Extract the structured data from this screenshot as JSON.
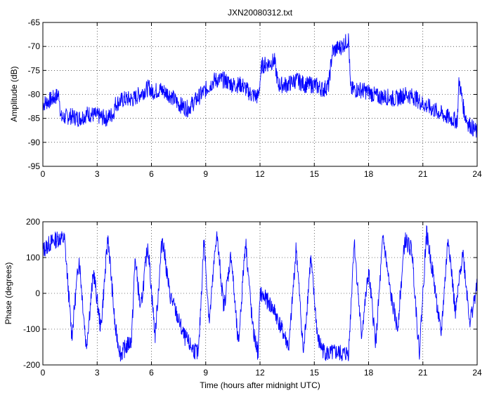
{
  "chart_data": [
    {
      "type": "line",
      "title": "JXN20080312.txt",
      "xlabel": "",
      "ylabel": "Amplitude (dB)",
      "xlim": [
        0,
        24
      ],
      "ylim": [
        -95,
        -65
      ],
      "xticks": [
        "0",
        "3",
        "6",
        "9",
        "12",
        "15",
        "18",
        "21",
        "24"
      ],
      "yticks": [
        "-95",
        "-90",
        "-85",
        "-80",
        "-75",
        "-70",
        "-65"
      ],
      "grid": true,
      "color": "#0000ff",
      "series": [
        {
          "x": [
            0,
            0.5,
            0.9,
            1.0,
            1.5,
            2.0,
            2.5,
            3.0,
            3.5,
            3.9,
            4.0,
            4.5,
            5.0,
            5.5,
            5.9,
            6.0,
            6.5,
            7.0,
            7.5,
            8.0,
            8.5,
            9.0,
            9.5,
            10.0,
            10.5,
            11.0,
            11.5,
            11.9,
            12.1,
            12.5,
            12.8,
            13.0,
            13.5,
            14.0,
            14.5,
            15.0,
            15.5,
            15.8,
            16.0,
            16.5,
            16.9,
            17.0,
            17.5,
            18.0,
            18.5,
            19.0,
            19.5,
            20.0,
            20.5,
            21.0,
            21.5,
            22.0,
            22.5,
            22.9,
            23.0,
            23.3,
            23.5,
            24.0
          ],
          "values": [
            -82,
            -81,
            -80,
            -85,
            -84.5,
            -85,
            -84,
            -84.5,
            -85,
            -84,
            -82,
            -81,
            -81,
            -79.5,
            -78.5,
            -79.5,
            -79,
            -80,
            -82,
            -83,
            -81,
            -79,
            -77,
            -77,
            -78,
            -78,
            -80,
            -80.5,
            -74,
            -73.5,
            -73,
            -78,
            -78,
            -77,
            -78,
            -78,
            -79,
            -78,
            -71,
            -70,
            -68.5,
            -79,
            -79,
            -79.5,
            -80.5,
            -80.5,
            -81,
            -80,
            -80.5,
            -82,
            -83,
            -84,
            -85,
            -85.5,
            -77,
            -84,
            -86,
            -88
          ]
        }
      ]
    },
    {
      "type": "line",
      "title": "",
      "xlabel": "Time (hours after midnight UTC)",
      "ylabel": "Phase (degrees)",
      "xlim": [
        0,
        24
      ],
      "ylim": [
        -200,
        200
      ],
      "xticks": [
        "0",
        "3",
        "6",
        "9",
        "12",
        "15",
        "18",
        "21",
        "24"
      ],
      "yticks": [
        "-200",
        "-100",
        "0",
        "100",
        "200"
      ],
      "grid": true,
      "color": "#0000ff",
      "series": [
        {
          "x": [
            0,
            0.4,
            0.9,
            1.2,
            1.6,
            2.0,
            2.4,
            2.8,
            3.2,
            3.6,
            4.0,
            4.3,
            4.6,
            4.9,
            5.1,
            5.4,
            5.8,
            6.2,
            6.6,
            7.0,
            7.4,
            7.8,
            8.2,
            8.6,
            8.9,
            9.2,
            9.6,
            10.0,
            10.4,
            10.8,
            11.2,
            11.6,
            11.9,
            12.0,
            12.4,
            12.8,
            13.2,
            13.6,
            14.0,
            14.4,
            14.8,
            15.2,
            15.5,
            15.8,
            16.2,
            16.6,
            16.9,
            17.2,
            17.6,
            18.0,
            18.4,
            18.8,
            19.2,
            19.6,
            20.0,
            20.4,
            20.8,
            21.2,
            21.6,
            22.0,
            22.4,
            22.8,
            23.2,
            23.6,
            24.0
          ],
          "values": [
            120,
            140,
            155,
            150,
            -120,
            100,
            -150,
            60,
            -100,
            160,
            -100,
            -170,
            -150,
            -130,
            100,
            -50,
            140,
            -120,
            160,
            0,
            -60,
            -120,
            -150,
            -170,
            150,
            -80,
            170,
            -40,
            110,
            -150,
            150,
            -100,
            -170,
            0,
            -20,
            -50,
            -100,
            -150,
            130,
            -170,
            100,
            -130,
            -160,
            -170,
            -165,
            -170,
            -165,
            150,
            -120,
            60,
            -140,
            160,
            0,
            -100,
            150,
            120,
            -170,
            170,
            40,
            -120,
            160,
            -60,
            120,
            -80,
            20
          ]
        }
      ]
    }
  ]
}
